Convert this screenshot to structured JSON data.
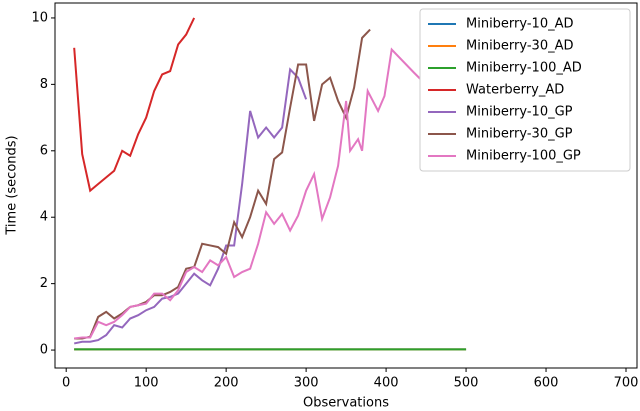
{
  "chart_data": {
    "type": "line",
    "xlabel": "Observations",
    "ylabel": "Time (seconds)",
    "xlim": [
      -14,
      715
    ],
    "ylim": [
      -0.54,
      10.45
    ],
    "xticks": [
      0,
      100,
      200,
      300,
      400,
      500,
      600,
      700
    ],
    "yticks": [
      0,
      2,
      4,
      6,
      8,
      10
    ],
    "legend": "upper right",
    "series": [
      {
        "name": "Miniberry-10_AD",
        "color": "#1f77b4",
        "x": [
          10,
          500
        ],
        "values": [
          0.02,
          0.02
        ]
      },
      {
        "name": "Miniberry-30_AD",
        "color": "#ff7f0e",
        "x": [
          10,
          500
        ],
        "values": [
          0.02,
          0.02
        ]
      },
      {
        "name": "Miniberry-100_AD",
        "color": "#2ca02c",
        "x": [
          10,
          500
        ],
        "values": [
          0.02,
          0.02
        ]
      },
      {
        "name": "Waterberry_AD",
        "color": "#d62728",
        "x": [
          10,
          20,
          30,
          40,
          50,
          60,
          70,
          80,
          90,
          100,
          110,
          120,
          130,
          140,
          150,
          160
        ],
        "values": [
          9.1,
          5.9,
          4.8,
          5.0,
          5.2,
          5.4,
          6.0,
          5.85,
          6.5,
          7.0,
          7.8,
          8.3,
          8.4,
          9.2,
          9.5,
          10.0
        ]
      },
      {
        "name": "Miniberry-10_GP",
        "color": "#9467bd",
        "x": [
          10,
          20,
          30,
          40,
          50,
          60,
          70,
          80,
          90,
          100,
          110,
          120,
          130,
          140,
          150,
          160,
          170,
          180,
          190,
          200,
          210,
          220,
          230,
          240,
          250,
          260,
          270,
          280,
          290,
          300
        ],
        "values": [
          0.2,
          0.25,
          0.25,
          0.3,
          0.45,
          0.75,
          0.68,
          0.95,
          1.05,
          1.2,
          1.3,
          1.55,
          1.6,
          1.7,
          2.0,
          2.3,
          2.1,
          1.95,
          2.45,
          3.15,
          3.15,
          5.0,
          7.2,
          6.4,
          6.7,
          6.4,
          6.7,
          8.45,
          8.2,
          7.55
        ]
      },
      {
        "name": "Miniberry-30_GP",
        "color": "#8c564b",
        "x": [
          10,
          20,
          30,
          40,
          50,
          60,
          70,
          80,
          90,
          100,
          110,
          120,
          130,
          140,
          150,
          160,
          170,
          180,
          190,
          200,
          210,
          220,
          230,
          240,
          250,
          260,
          270,
          280,
          290,
          300,
          310,
          320,
          330,
          340,
          350,
          360,
          370,
          380
        ],
        "values": [
          0.35,
          0.35,
          0.4,
          1.0,
          1.15,
          0.95,
          1.1,
          1.3,
          1.35,
          1.45,
          1.65,
          1.65,
          1.75,
          1.9,
          2.45,
          2.5,
          3.2,
          3.15,
          3.1,
          2.9,
          3.85,
          3.4,
          4.0,
          4.8,
          4.4,
          5.75,
          5.95,
          7.3,
          8.6,
          8.6,
          6.9,
          8.0,
          8.2,
          7.5,
          7.0,
          7.9,
          9.4,
          9.65
        ]
      },
      {
        "name": "Miniberry-100_GP",
        "color": "#e377c2",
        "x": [
          10,
          20,
          30,
          40,
          50,
          60,
          70,
          80,
          90,
          100,
          110,
          120,
          130,
          140,
          150,
          160,
          170,
          180,
          190,
          200,
          210,
          220,
          230,
          240,
          250,
          260,
          270,
          280,
          290,
          300,
          310,
          320,
          330,
          340,
          350,
          355,
          365,
          370,
          377,
          390,
          398,
          407,
          435,
          462
        ],
        "values": [
          0.35,
          0.38,
          0.38,
          0.85,
          0.75,
          0.85,
          1.05,
          1.3,
          1.35,
          1.4,
          1.7,
          1.7,
          1.5,
          1.8,
          2.35,
          2.5,
          2.35,
          2.7,
          2.55,
          2.8,
          2.2,
          2.35,
          2.45,
          3.2,
          4.15,
          3.8,
          4.1,
          3.6,
          4.05,
          4.8,
          5.3,
          3.95,
          4.6,
          5.55,
          7.5,
          6.0,
          6.35,
          6.0,
          7.8,
          7.2,
          7.65,
          9.05,
          8.35,
          7.7
        ]
      }
    ]
  }
}
